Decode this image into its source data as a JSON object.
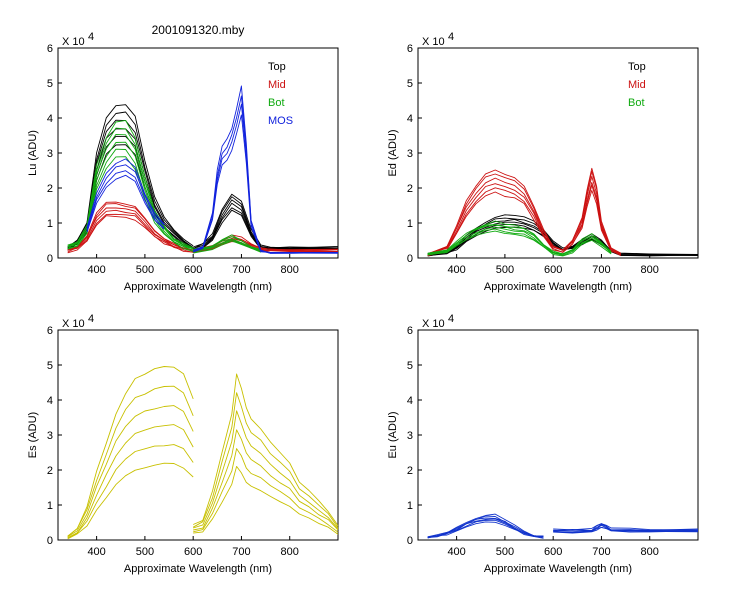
{
  "figure": {
    "title": "2001091320.mby"
  },
  "colors": {
    "Top": "#000000",
    "Mid": "#cc1111",
    "Bot": "#11aa11",
    "MOS": "#1122dd",
    "Es": "#c8c000",
    "Eu": "#1133cc"
  },
  "chart_data": [
    {
      "id": "Lu",
      "type": "line",
      "title": "2001091320.mby",
      "xlabel": "Approximate Wavelength (nm)",
      "ylabel": "Lu (ADU)",
      "y_multiplier": "X 10",
      "y_multiplier_exp": "4",
      "xlim": [
        320,
        900
      ],
      "ylim": [
        0,
        6
      ],
      "xticks": [
        400,
        500,
        600,
        700,
        800
      ],
      "yticks": [
        0,
        1,
        2,
        3,
        4,
        5,
        6
      ],
      "legend": {
        "placement": "top-right",
        "entries": [
          "Top",
          "Mid",
          "Bot",
          "MOS"
        ]
      },
      "series": [
        {
          "name": "Top",
          "color": "#000000",
          "segments": [
            {
              "x": [
                340,
                360,
                380,
                400,
                420,
                440,
                460,
                480,
                500,
                520,
                540,
                560,
                580,
                600
              ],
              "y": [
                0.3,
                0.45,
                0.9,
                2.6,
                3.5,
                3.8,
                3.8,
                3.5,
                2.4,
                1.5,
                1.0,
                0.7,
                0.45,
                0.3
              ]
            },
            {
              "x": [
                600,
                620,
                640,
                660,
                680,
                700,
                720,
                740,
                760,
                800,
                900
              ],
              "y": [
                0.25,
                0.35,
                0.6,
                1.2,
                1.6,
                1.4,
                0.7,
                0.3,
                0.28,
                0.27,
                0.27
              ]
            }
          ]
        },
        {
          "name": "Mid",
          "color": "#cc1111",
          "segments": [
            {
              "x": [
                340,
                360,
                380,
                400,
                420,
                440,
                460,
                480,
                500,
                520,
                540,
                560,
                580,
                600
              ],
              "y": [
                0.2,
                0.3,
                0.55,
                1.1,
                1.4,
                1.4,
                1.35,
                1.3,
                1.0,
                0.7,
                0.5,
                0.35,
                0.25,
                0.2
              ]
            },
            {
              "x": [
                600,
                640,
                660,
                680,
                700,
                720,
                740,
                760,
                800,
                900
              ],
              "y": [
                0.2,
                0.3,
                0.45,
                0.55,
                0.5,
                0.35,
                0.25,
                0.22,
                0.22,
                0.22
              ]
            }
          ]
        },
        {
          "name": "Bot",
          "color": "#11aa11",
          "segments": [
            {
              "x": [
                340,
                360,
                380,
                400,
                420,
                440,
                460,
                480,
                500,
                520,
                540,
                560,
                580,
                600
              ],
              "y": [
                0.3,
                0.4,
                0.8,
                2.3,
                3.0,
                3.4,
                3.4,
                3.0,
                2.0,
                1.2,
                0.8,
                0.5,
                0.35,
                0.25
              ]
            },
            {
              "x": [
                600,
                640,
                660,
                680,
                700,
                720,
                740
              ],
              "y": [
                0.2,
                0.3,
                0.45,
                0.55,
                0.45,
                0.3,
                0.2
              ]
            }
          ]
        },
        {
          "name": "MOS",
          "color": "#1122dd",
          "segments": [
            {
              "x": [
                380,
                400,
                420,
                440,
                460,
                480,
                500,
                520,
                540
              ],
              "y": [
                0.8,
                1.7,
                2.2,
                2.5,
                2.6,
                2.4,
                1.7,
                1.2,
                0.9
              ]
            },
            {
              "x": [
                600,
                620,
                640,
                650,
                660,
                670,
                680,
                690,
                700,
                710,
                720,
                740,
                760,
                800,
                900
              ],
              "y": [
                0.2,
                0.3,
                1.2,
                2.3,
                2.9,
                3.1,
                3.4,
                3.9,
                4.5,
                3.0,
                1.0,
                0.2,
                0.15,
                0.15,
                0.15
              ]
            }
          ]
        }
      ]
    },
    {
      "id": "Ed",
      "type": "line",
      "xlabel": "Approximate Wavelength (nm)",
      "ylabel": "Ed  (ADU)",
      "y_multiplier": "X 10",
      "y_multiplier_exp": "4",
      "xlim": [
        320,
        900
      ],
      "ylim": [
        0,
        6
      ],
      "xticks": [
        400,
        500,
        600,
        700,
        800
      ],
      "yticks": [
        0,
        1,
        2,
        3,
        4,
        5,
        6
      ],
      "legend": {
        "placement": "top-right",
        "entries": [
          "Top",
          "Mid",
          "Bot"
        ]
      },
      "series": [
        {
          "name": "Top",
          "color": "#000000",
          "segments": [
            {
              "x": [
                340,
                380,
                400,
                420,
                440,
                460,
                480,
                500,
                520,
                540,
                560,
                580,
                600,
                620,
                640,
                660,
                680,
                700,
                720,
                740,
                800,
                900
              ],
              "y": [
                0.1,
                0.15,
                0.3,
                0.55,
                0.75,
                0.9,
                1.0,
                1.05,
                1.05,
                1.0,
                0.9,
                0.7,
                0.4,
                0.25,
                0.3,
                0.45,
                0.6,
                0.45,
                0.2,
                0.1,
                0.08,
                0.08
              ]
            }
          ]
        },
        {
          "name": "Mid",
          "color": "#cc1111",
          "segments": [
            {
              "x": [
                340,
                380,
                400,
                420,
                440,
                460,
                480,
                500,
                520,
                540,
                560,
                580,
                600,
                620,
                640,
                660,
                670,
                680,
                690,
                700,
                720,
                740
              ],
              "y": [
                0.1,
                0.3,
                0.8,
                1.4,
                1.8,
                2.1,
                2.2,
                2.1,
                2.0,
                1.8,
                1.3,
                0.7,
                0.3,
                0.2,
                0.45,
                1.0,
                1.7,
                2.25,
                1.8,
                0.9,
                0.25,
                0.1
              ]
            }
          ]
        },
        {
          "name": "Bot",
          "color": "#11aa11",
          "segments": [
            {
              "x": [
                340,
                380,
                400,
                420,
                440,
                460,
                480,
                500,
                520,
                540,
                560,
                580,
                600,
                620,
                640,
                660,
                680,
                700,
                720
              ],
              "y": [
                0.1,
                0.2,
                0.4,
                0.6,
                0.75,
                0.85,
                0.9,
                0.85,
                0.8,
                0.75,
                0.6,
                0.35,
                0.15,
                0.1,
                0.2,
                0.45,
                0.6,
                0.4,
                0.15
              ]
            }
          ]
        }
      ]
    },
    {
      "id": "Es",
      "type": "line",
      "xlabel": "Approximate Wavelength (nm)",
      "ylabel": "Es  (ADU)",
      "y_multiplier": "X 10",
      "y_multiplier_exp": "4",
      "xlim": [
        320,
        900
      ],
      "ylim": [
        0,
        6
      ],
      "xticks": [
        400,
        500,
        600,
        700,
        800
      ],
      "yticks": [
        0,
        1,
        2,
        3,
        4,
        5,
        6
      ],
      "series": [
        {
          "color": "#c8c000",
          "segments": [
            {
              "x": [
                340,
                360,
                380,
                400,
                420,
                440,
                460,
                480,
                500,
                520,
                540,
                560,
                580,
                600
              ],
              "y": [
                0.1,
                0.25,
                0.7,
                1.4,
                2.0,
                2.6,
                3.0,
                3.3,
                3.4,
                3.5,
                3.55,
                3.55,
                3.4,
                2.9
              ]
            },
            {
              "x": [
                600,
                620,
                640,
                660,
                680,
                690,
                700,
                710,
                720,
                740,
                760,
                780,
                800,
                820,
                840,
                860,
                880,
                900
              ],
              "y": [
                0.3,
                0.4,
                1.0,
                1.8,
                2.6,
                3.4,
                3.1,
                2.7,
                2.5,
                2.3,
                2.0,
                1.8,
                1.6,
                1.2,
                1.0,
                0.8,
                0.6,
                0.3
              ]
            }
          ]
        }
      ]
    },
    {
      "id": "Eu",
      "type": "line",
      "xlabel": "Approximate Wavelength (nm)",
      "ylabel": "Eu  (ADU)",
      "y_multiplier": "X 10",
      "y_multiplier_exp": "4",
      "xlim": [
        320,
        900
      ],
      "ylim": [
        0,
        6
      ],
      "xticks": [
        400,
        500,
        600,
        700,
        800
      ],
      "yticks": [
        0,
        1,
        2,
        3,
        4,
        5,
        6
      ],
      "series": [
        {
          "color": "#1133cc",
          "segments": [
            {
              "x": [
                340,
                360,
                380,
                400,
                420,
                440,
                460,
                480,
                500,
                520,
                540,
                560,
                580
              ],
              "y": [
                0.1,
                0.12,
                0.2,
                0.3,
                0.45,
                0.55,
                0.6,
                0.62,
                0.5,
                0.35,
                0.2,
                0.1,
                0.08
              ]
            },
            {
              "x": [
                600,
                640,
                680,
                690,
                700,
                710,
                720,
                760,
                800,
                900
              ],
              "y": [
                0.25,
                0.25,
                0.28,
                0.35,
                0.42,
                0.35,
                0.28,
                0.27,
                0.27,
                0.27
              ]
            }
          ]
        }
      ]
    }
  ]
}
